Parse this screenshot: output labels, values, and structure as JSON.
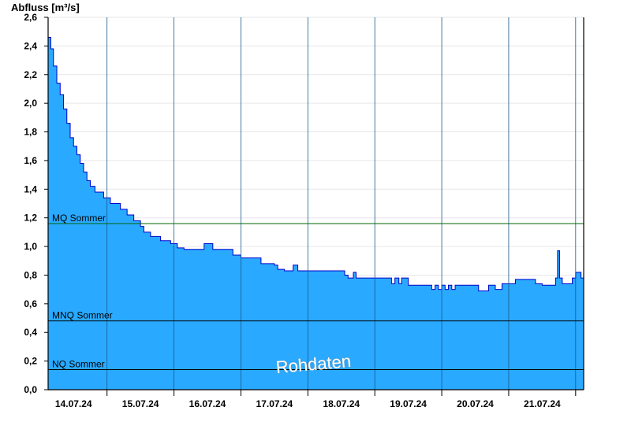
{
  "chart_data": {
    "type": "area",
    "title": "",
    "ylabel": "Abfluss [m³/s]",
    "xlabel": "",
    "ylim": [
      0,
      2.6
    ],
    "yticks": [
      "0,0",
      "0,2",
      "0,4",
      "0,6",
      "0,8",
      "1,0",
      "1,2",
      "1,4",
      "1,6",
      "1,8",
      "2,0",
      "2,2",
      "2,4",
      "2,6"
    ],
    "xlim_days": [
      13.62,
      21.62
    ],
    "x_ticks": [
      {
        "day": 14.0,
        "label": "14.07.24"
      },
      {
        "day": 15.0,
        "label": "15.07.24"
      },
      {
        "day": 16.0,
        "label": "16.07.24"
      },
      {
        "day": 17.0,
        "label": "17.07.24"
      },
      {
        "day": 18.0,
        "label": "18.07.24"
      },
      {
        "day": 19.0,
        "label": "19.07.24"
      },
      {
        "day": 20.0,
        "label": "20.07.24"
      },
      {
        "day": 21.0,
        "label": "21.07.24"
      }
    ],
    "grid": true,
    "series": [
      {
        "color": "#29a9ff",
        "line_color": "#0000cc",
        "points": [
          [
            13.62,
            2.46
          ],
          [
            13.66,
            2.38
          ],
          [
            13.7,
            2.26
          ],
          [
            13.75,
            2.14
          ],
          [
            13.8,
            2.06
          ],
          [
            13.85,
            1.96
          ],
          [
            13.9,
            1.86
          ],
          [
            13.95,
            1.76
          ],
          [
            14.0,
            1.7
          ],
          [
            14.05,
            1.64
          ],
          [
            14.1,
            1.58
          ],
          [
            14.15,
            1.52
          ],
          [
            14.2,
            1.46
          ],
          [
            14.25,
            1.42
          ],
          [
            14.32,
            1.38
          ],
          [
            14.45,
            1.34
          ],
          [
            14.55,
            1.3
          ],
          [
            14.7,
            1.26
          ],
          [
            14.8,
            1.22
          ],
          [
            14.9,
            1.18
          ],
          [
            15.0,
            1.14
          ],
          [
            15.05,
            1.1
          ],
          [
            15.15,
            1.07
          ],
          [
            15.3,
            1.04
          ],
          [
            15.45,
            1.02
          ],
          [
            15.55,
            0.99
          ],
          [
            15.65,
            0.98
          ],
          [
            15.8,
            0.98
          ],
          [
            15.9,
            0.98
          ],
          [
            15.95,
            1.02
          ],
          [
            16.02,
            1.02
          ],
          [
            16.08,
            0.98
          ],
          [
            16.3,
            0.98
          ],
          [
            16.38,
            0.94
          ],
          [
            16.5,
            0.92
          ],
          [
            16.7,
            0.92
          ],
          [
            16.8,
            0.88
          ],
          [
            17.0,
            0.87
          ],
          [
            17.05,
            0.84
          ],
          [
            17.15,
            0.83
          ],
          [
            17.28,
            0.87
          ],
          [
            17.35,
            0.83
          ],
          [
            17.6,
            0.83
          ],
          [
            17.85,
            0.83
          ],
          [
            18.05,
            0.8
          ],
          [
            18.1,
            0.78
          ],
          [
            18.18,
            0.82
          ],
          [
            18.22,
            0.78
          ],
          [
            18.5,
            0.78
          ],
          [
            18.7,
            0.78
          ],
          [
            18.75,
            0.74
          ],
          [
            18.8,
            0.78
          ],
          [
            18.86,
            0.74
          ],
          [
            18.9,
            0.78
          ],
          [
            19.0,
            0.73
          ],
          [
            19.2,
            0.73
          ],
          [
            19.3,
            0.73
          ],
          [
            19.35,
            0.7
          ],
          [
            19.4,
            0.73
          ],
          [
            19.45,
            0.7
          ],
          [
            19.5,
            0.73
          ],
          [
            19.55,
            0.7
          ],
          [
            19.6,
            0.73
          ],
          [
            19.65,
            0.7
          ],
          [
            19.7,
            0.73
          ],
          [
            19.8,
            0.73
          ],
          [
            19.9,
            0.73
          ],
          [
            20.05,
            0.69
          ],
          [
            20.2,
            0.73
          ],
          [
            20.3,
            0.7
          ],
          [
            20.4,
            0.74
          ],
          [
            20.6,
            0.77
          ],
          [
            20.85,
            0.77
          ],
          [
            20.9,
            0.74
          ],
          [
            21.0,
            0.73
          ],
          [
            21.15,
            0.73
          ],
          [
            21.2,
            0.78
          ],
          [
            21.23,
            0.97
          ],
          [
            21.26,
            0.78
          ],
          [
            21.3,
            0.74
          ],
          [
            21.4,
            0.74
          ],
          [
            21.45,
            0.78
          ],
          [
            21.5,
            0.82
          ],
          [
            21.56,
            0.82
          ],
          [
            21.58,
            0.78
          ],
          [
            21.62,
            0.78
          ]
        ]
      }
    ],
    "reference_lines": [
      {
        "label": "MQ Sommer",
        "value": 1.16,
        "color": "#006600"
      },
      {
        "label": "MNQ Sommer",
        "value": 0.48,
        "color": "#000000"
      },
      {
        "label": "NQ Sommer",
        "value": 0.14,
        "color": "#000000"
      }
    ],
    "annotations": [
      {
        "text": "Rohdaten"
      }
    ]
  }
}
